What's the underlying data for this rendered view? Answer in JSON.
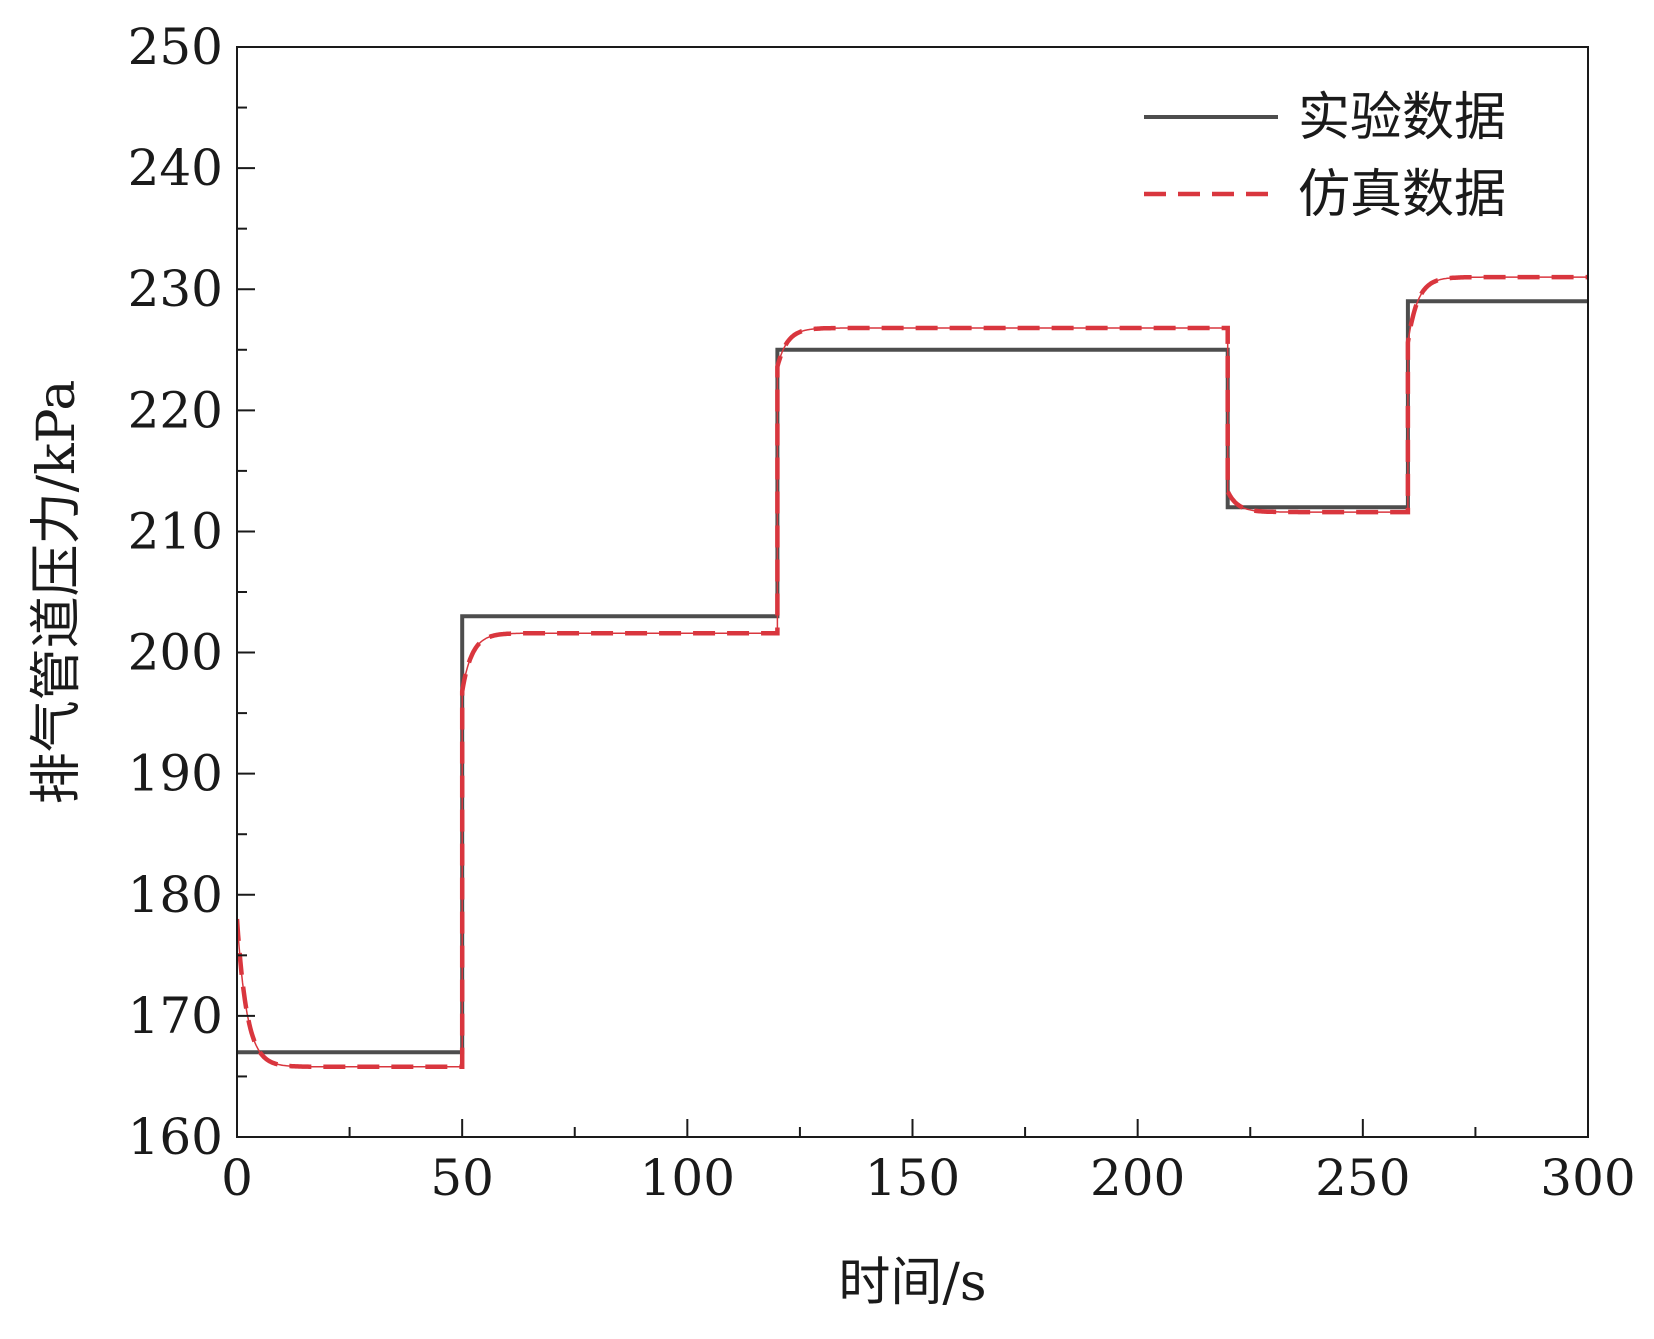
{
  "chart_data": {
    "type": "line",
    "title": "",
    "xlabel": "时间/s",
    "ylabel": "排气管道压力/kPa",
    "xlim": [
      0,
      300
    ],
    "ylim": [
      160,
      250
    ],
    "xticks": [
      0,
      50,
      100,
      150,
      200,
      250,
      300
    ],
    "yticks": [
      160,
      170,
      180,
      190,
      200,
      210,
      220,
      230,
      240,
      250
    ],
    "grid": false,
    "legend_position": "top-right",
    "series": [
      {
        "name": "实验数据",
        "style": "solid",
        "color": "#4d4d4d",
        "steps": [
          {
            "t": 0,
            "value": 167
          },
          {
            "t": 50,
            "value": 203
          },
          {
            "t": 120,
            "value": 225
          },
          {
            "t": 220,
            "value": 212
          },
          {
            "t": 260,
            "value": 229
          }
        ]
      },
      {
        "name": "仿真数据",
        "style": "dashed",
        "color": "#d9363e",
        "initial": 178,
        "time_constant": 2.2,
        "steps": [
          {
            "t": 0,
            "value": 165.8,
            "jump": 0
          },
          {
            "t": 50,
            "value": 201.6,
            "jump": 31
          },
          {
            "t": 120,
            "value": 226.8,
            "jump": 22
          },
          {
            "t": 220,
            "value": 211.6,
            "jump": -13.5
          },
          {
            "t": 260,
            "value": 231,
            "jump": 14
          }
        ]
      }
    ]
  }
}
